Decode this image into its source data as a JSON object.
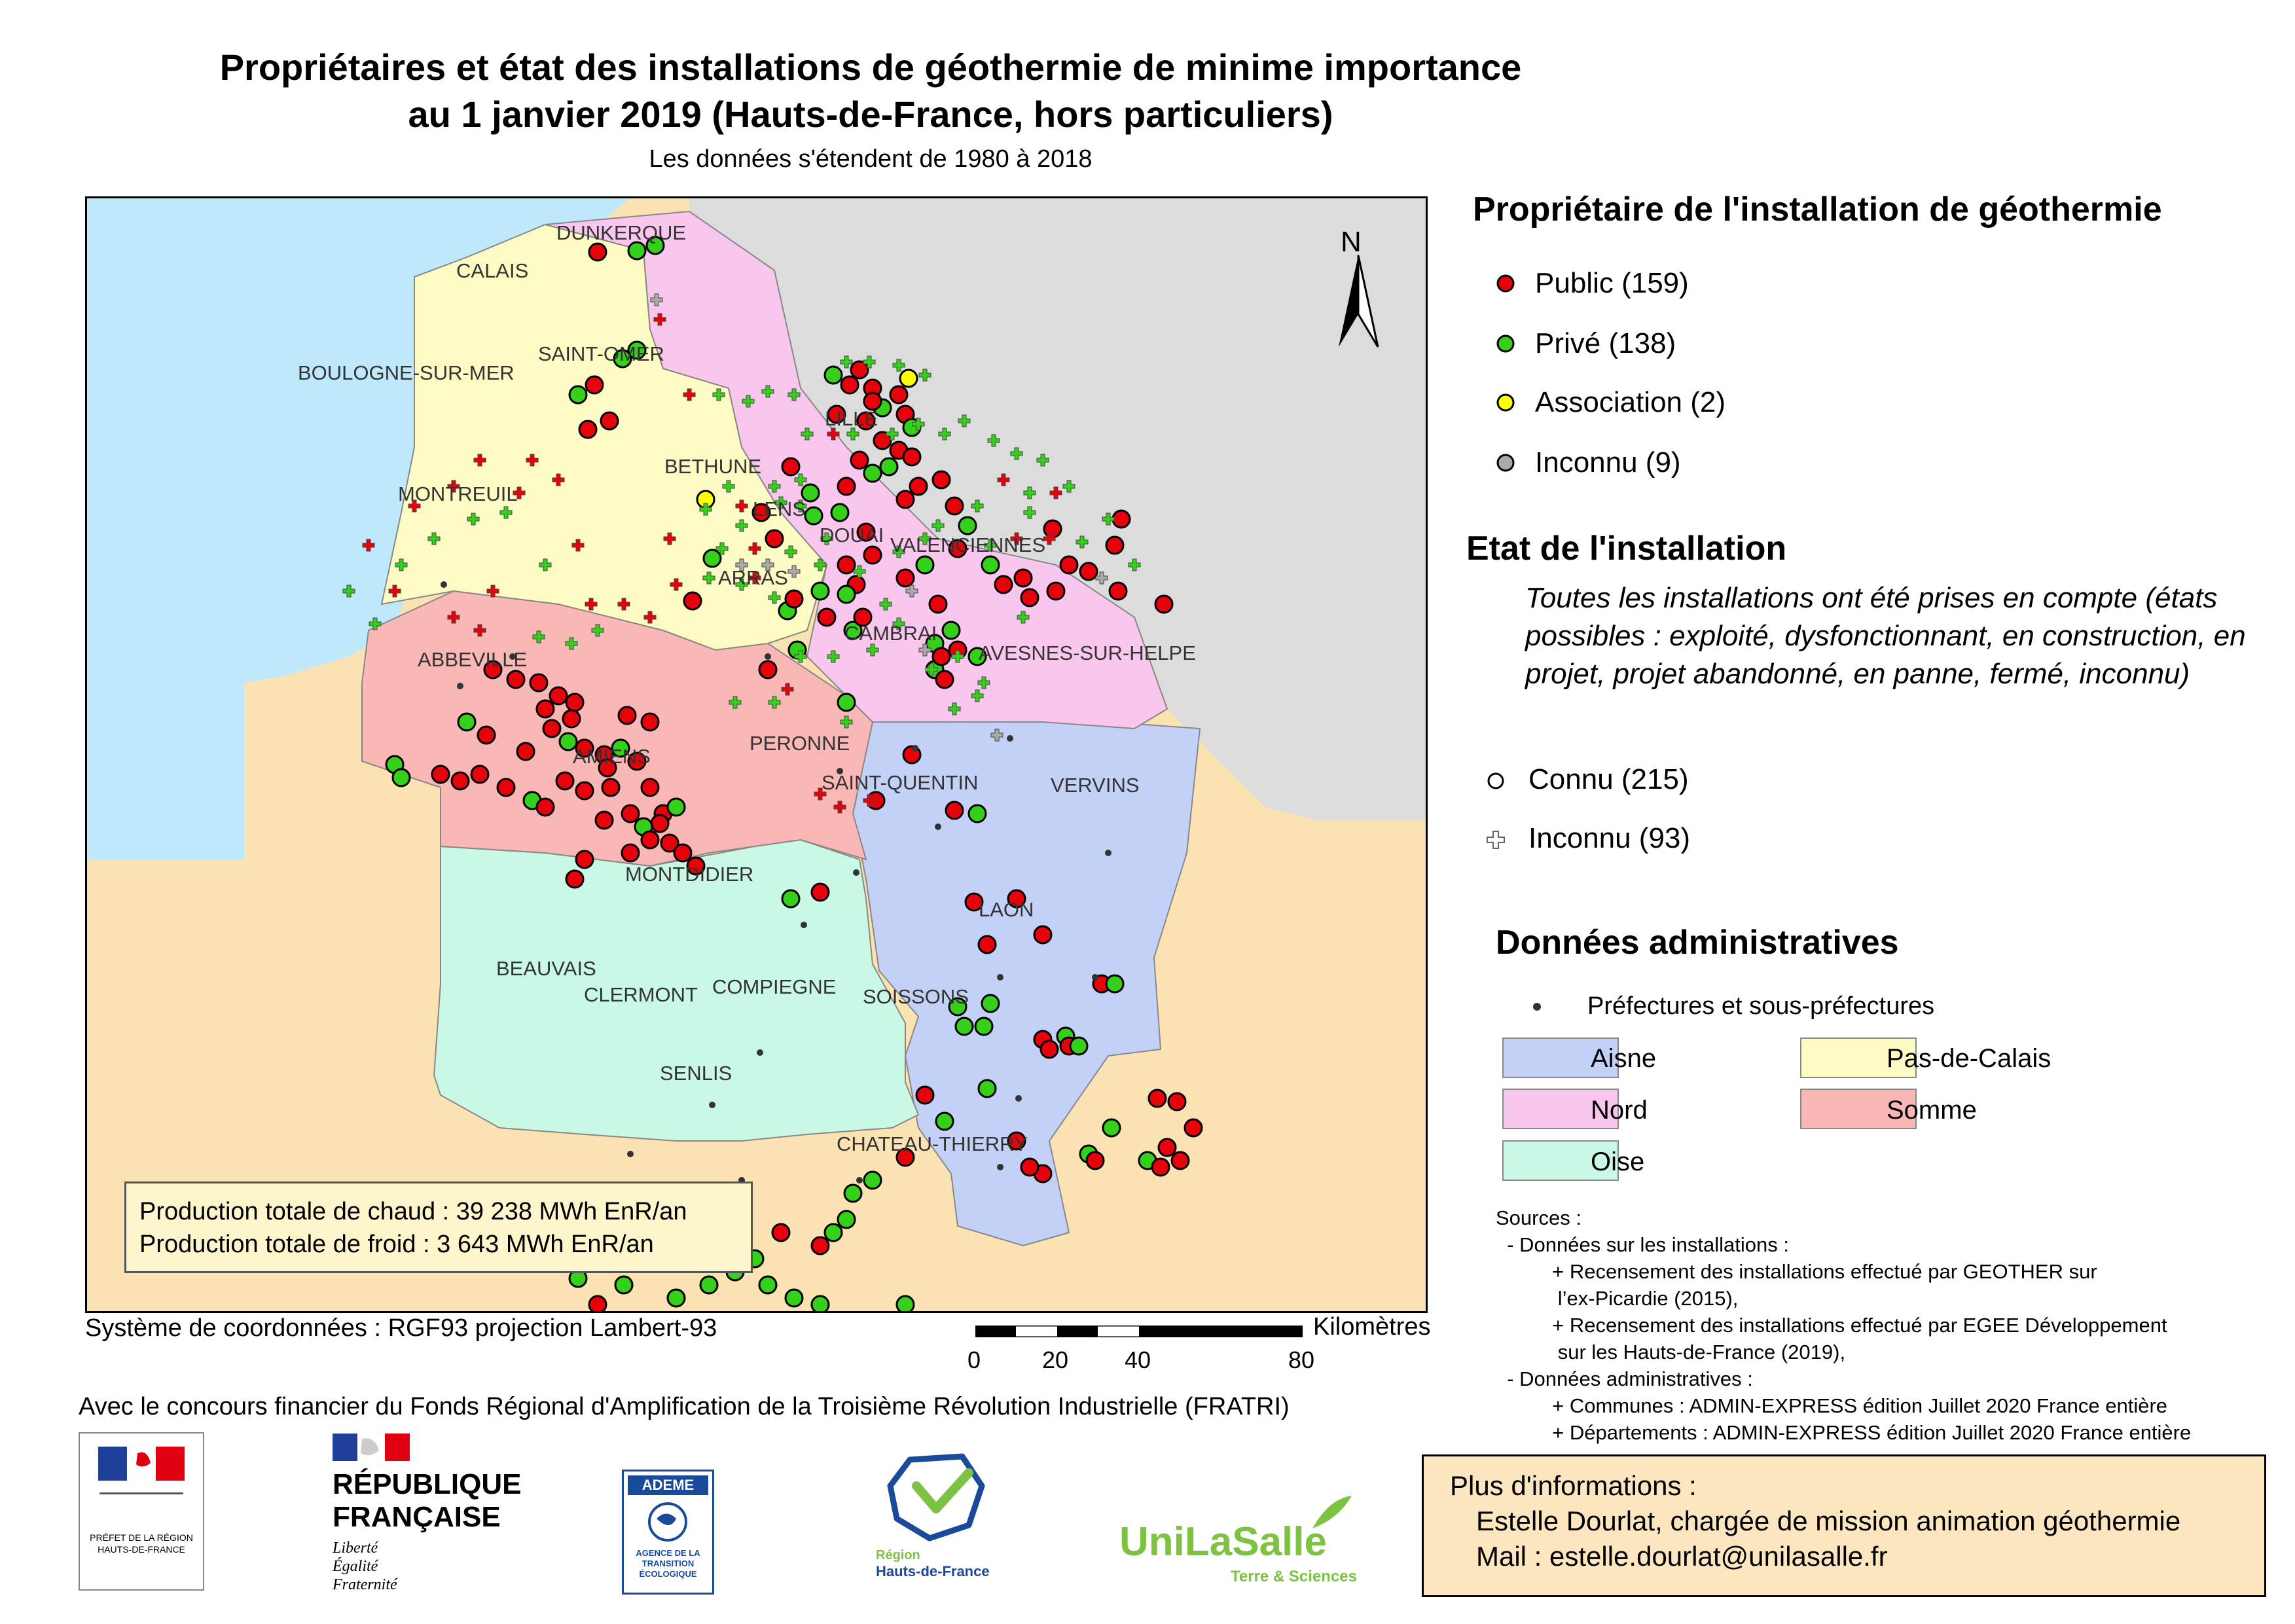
{
  "title_line1": "Propriétaires et état des installations de géothermie de minime importance",
  "title_line2": "au 1 janvier 2019 (Hauts-de-France, hors particuliers)",
  "subtitle": "Les données s'étendent de 1980 à 2018",
  "north": "N",
  "cities": [
    "DUNKERQUE",
    "CALAIS",
    "SAINT-OMER",
    "BOULOGNE-SUR-MER",
    "LILLE",
    "BETHUNE",
    "MONTREUIL",
    "LENS",
    "DOUAI",
    "VALENCIENNES",
    "ARRAS",
    "CAMBRAI",
    "AVESNES-SUR-HELPE",
    "ABBEVILLE",
    "PERONNE",
    "AMIENS",
    "SAINT-QUENTIN",
    "VERVINS",
    "MONTDIDIER",
    "LAON",
    "BEAUVAIS",
    "CLERMONT",
    "COMPIEGNE",
    "SOISSONS",
    "SENLIS",
    "CHATEAU-THIERRY"
  ],
  "production": {
    "chaud": "Production totale de chaud : 39 238 MWh EnR/an",
    "froid": "Production totale de froid : 3 643 MWh EnR/an"
  },
  "coord_system": "Système de coordonnées : RGF93 projection Lambert-93",
  "scale": {
    "ticks": [
      "0",
      "20",
      "40",
      "80"
    ],
    "unit": "Kilomètres"
  },
  "funding": "Avec le concours financier du Fonds Régional d'Amplification de la Troisième Révolution Industrielle (FRATRI)",
  "legend": {
    "owner_title": "Propriétaire de l'installation de géothermie",
    "owners": [
      {
        "label": "Public (159)",
        "color": "#e8000b"
      },
      {
        "label": "Privé (138)",
        "color": "#35d01a"
      },
      {
        "label": "Association (2)",
        "color": "#ffff00"
      },
      {
        "label": "Inconnu (9)",
        "color": "#aaaaaa"
      }
    ],
    "state_title": "Etat de l'installation",
    "state_note": "Toutes les installations ont été prises en compte (états possibles : exploité, dysfonctionnant, en construction, en projet, projet abandonné, en panne, fermé, inconnu)",
    "states": [
      {
        "label": "Connu (215)",
        "symbol": "circle"
      },
      {
        "label": "Inconnu (93)",
        "symbol": "cross"
      }
    ],
    "admin_title": "Données administratives",
    "prefectures": "Préfectures et sous-préfectures",
    "departments": [
      {
        "label": "Aisne",
        "color": "#c3d1f7"
      },
      {
        "label": "Pas-de-Calais",
        "color": "#fcfbc4"
      },
      {
        "label": "Nord",
        "color": "#f9c6ed"
      },
      {
        "label": "Somme",
        "color": "#f9b8b5"
      },
      {
        "label": "Oise",
        "color": "#c9f8e4"
      }
    ]
  },
  "sources": "Sources :\n  - Données sur les installations :\n          + Recensement des installations effectué par GEOTHER sur\n           l’ex-Picardie (2015),\n          + Recensement des installations effectué par EGEE Développement\n           sur les Hauts-de-France (2019),\n  - Données administratives :\n          + Communes : ADMIN-EXPRESS édition Juillet 2020 France entière\n          + Départements : ADMIN-EXPRESS édition Juillet 2020 France entière",
  "info": {
    "line1": "Plus d'informations :",
    "line2": "Estelle Dourlat, chargée de mission animation géothermie",
    "line3": "Mail : estelle.dourlat@unilasalle.fr"
  },
  "logos": {
    "prefet": "PRÉFET DE LA RÉGION HAUTS-DE-FRANCE",
    "rf1": "RÉPUBLIQUE",
    "rf2": "FRANÇAISE",
    "rf_motto": [
      "Liberté",
      "Égalité",
      "Fraternité"
    ],
    "ademe": "ADEME",
    "ademe_sub": "AGENCE DE LA TRANSITION ÉCOLOGIQUE",
    "region1": "Région",
    "region2": "Hauts-de-France",
    "unilasalle": "UniLaSalle",
    "unilasalle_sub": "Terre & Sciences"
  },
  "map_colors": {
    "sea": "#bfe8fb",
    "france": "#fbe2b3",
    "belgium": "#dcdcdc",
    "border": "#888888"
  }
}
